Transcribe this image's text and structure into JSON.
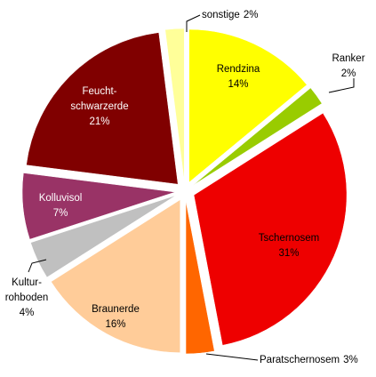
{
  "chart_data": {
    "type": "pie",
    "categories": [
      "Rendzina",
      "Ranker",
      "Tschernosem",
      "Paratschernosem",
      "Braunerde",
      "Kultur-rohboden",
      "Kolluvisol",
      "Feucht-schwarzerde",
      "sonstige"
    ],
    "values": [
      14,
      2,
      31,
      3,
      16,
      4,
      7,
      21,
      2
    ],
    "value_labels": [
      "14%",
      "2%",
      "31%",
      "3%",
      "16%",
      "4%",
      "7%",
      "21%",
      "2%"
    ],
    "colors": [
      "#ffff00",
      "#99cc00",
      "#ee0000",
      "#ff6600",
      "#ffcc99",
      "#c0c0c0",
      "#993366",
      "#800000",
      "#ffff99"
    ]
  }
}
